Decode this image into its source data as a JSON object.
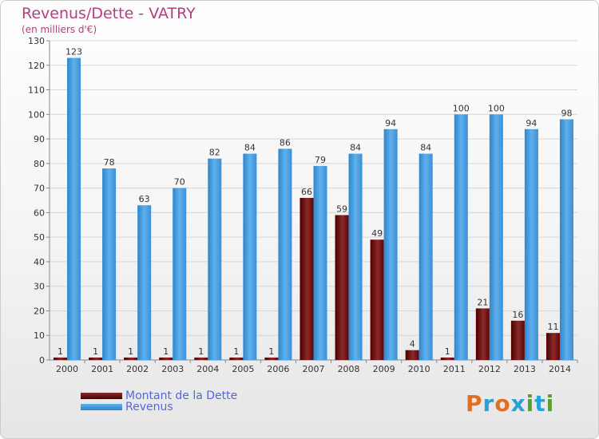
{
  "title": "Revenus/Dette - VATRY",
  "subtitle": "(en milliers d'€)",
  "logo": {
    "letters": [
      "P",
      "r",
      "o",
      "x",
      "i",
      "t",
      "i"
    ],
    "colors": [
      "#e07020",
      "#2aa0d8",
      "#e07020",
      "#2aa0d8",
      "#5aa030",
      "#2aa0d8",
      "#5aa030"
    ]
  },
  "legend": [
    {
      "label": "Montant de la Dette",
      "color": "#6e0a0a"
    },
    {
      "label": "Revenus",
      "color": "#3f97dc"
    }
  ],
  "chart_data": {
    "type": "bar",
    "title": "Revenus/Dette - VATRY",
    "ylabel": "(en milliers d'€)",
    "ylim": [
      0,
      130
    ],
    "yticks": [
      0,
      10,
      20,
      30,
      40,
      50,
      60,
      70,
      80,
      90,
      100,
      110,
      120,
      130
    ],
    "grid": true,
    "legend_position": "bottom-left",
    "categories": [
      "2000",
      "2001",
      "2002",
      "2003",
      "2004",
      "2005",
      "2006",
      "2007",
      "2008",
      "2009",
      "2010",
      "2011",
      "2012",
      "2013",
      "2014"
    ],
    "series": [
      {
        "name": "Montant de la Dette",
        "color": "#6e0a0a",
        "values": [
          1,
          1,
          1,
          1,
          1,
          1,
          1,
          66,
          59,
          49,
          4,
          1,
          21,
          16,
          11
        ]
      },
      {
        "name": "Revenus",
        "color": "#3f97dc",
        "values": [
          123,
          78,
          63,
          70,
          82,
          84,
          86,
          79,
          84,
          94,
          84,
          100,
          100,
          94,
          98
        ]
      }
    ]
  }
}
